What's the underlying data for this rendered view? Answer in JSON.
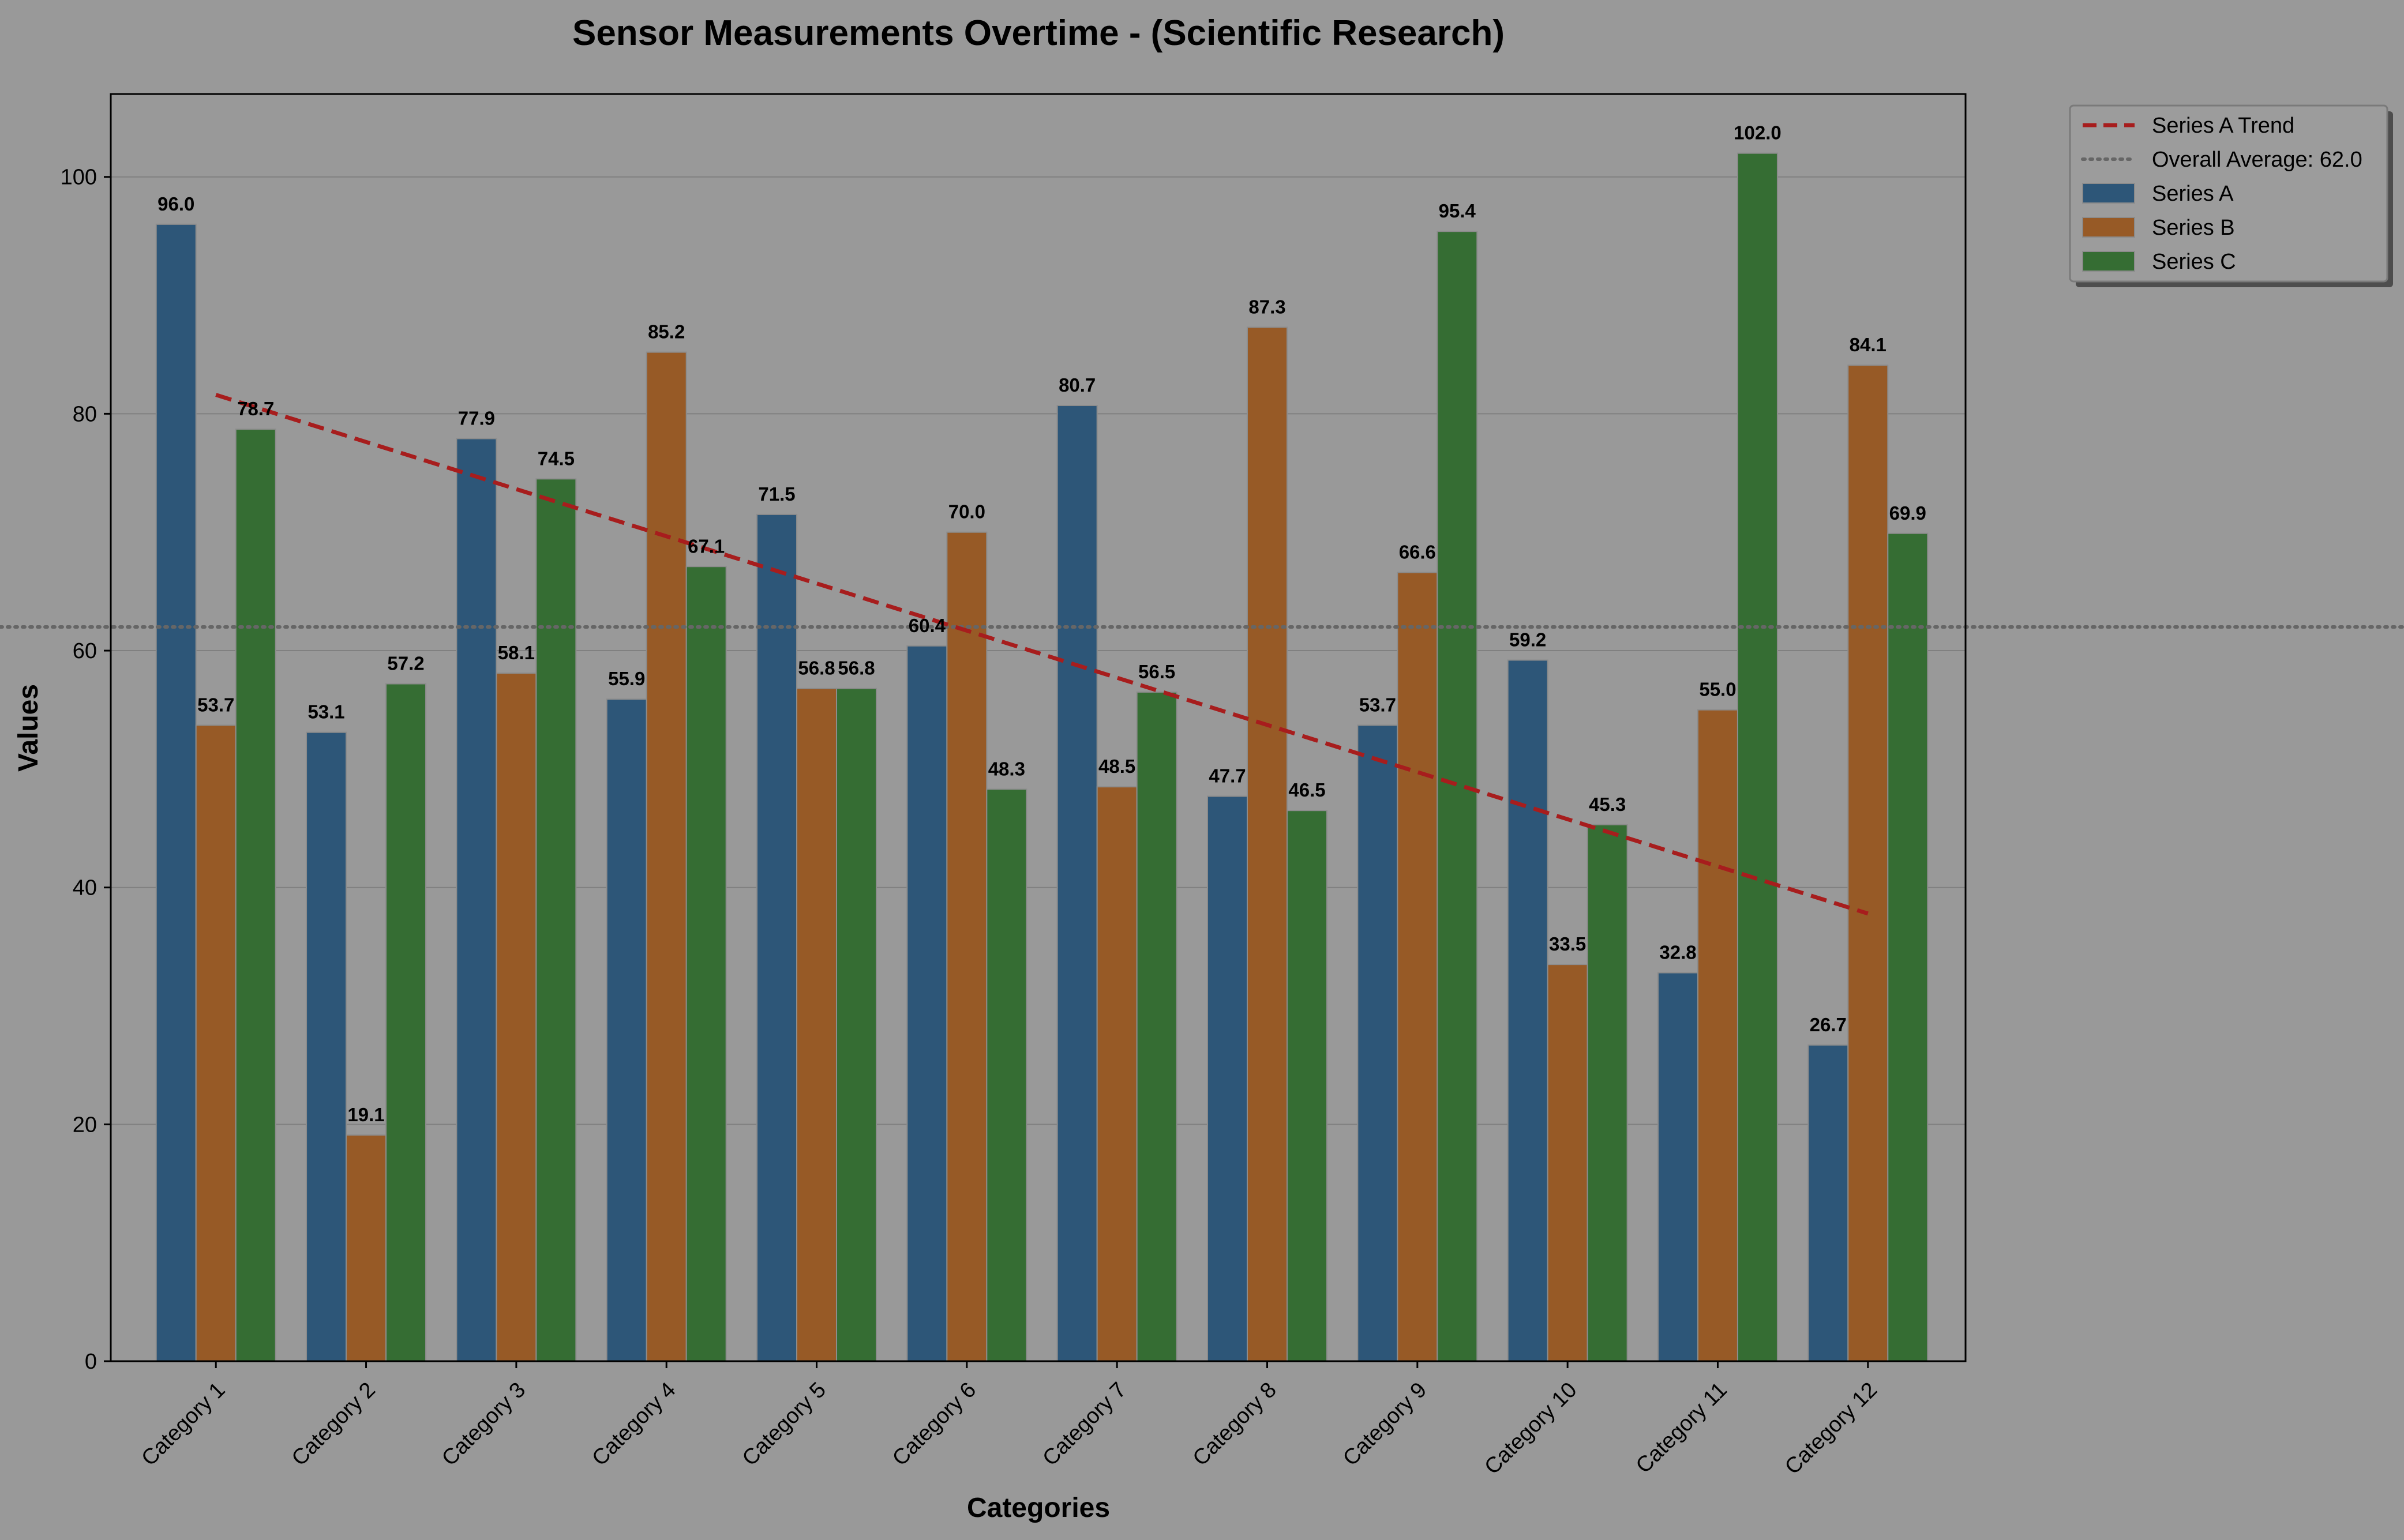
{
  "chart_data": {
    "type": "bar",
    "title": "Sensor Measurements Overtime - (Scientific Research)",
    "xlabel": "Categories",
    "ylabel": "Values",
    "ylim": [
      0,
      107
    ],
    "yticks": [
      0,
      20,
      40,
      60,
      80,
      100
    ],
    "grid": "horizontal",
    "legend_position": "outside-top-right",
    "categories": [
      "Category 1",
      "Category 2",
      "Category 3",
      "Category 4",
      "Category 5",
      "Category 6",
      "Category 7",
      "Category 8",
      "Category 9",
      "Category 10",
      "Category 11",
      "Category 12"
    ],
    "series": [
      {
        "name": "Series A",
        "color": "#2d5678",
        "values": [
          96.0,
          53.1,
          77.9,
          55.9,
          71.5,
          60.4,
          80.7,
          47.7,
          53.7,
          59.2,
          32.8,
          26.7
        ]
      },
      {
        "name": "Series B",
        "color": "#975a26",
        "values": [
          53.7,
          19.1,
          58.1,
          85.2,
          56.8,
          70.0,
          48.5,
          87.3,
          66.6,
          33.5,
          55.0,
          84.1
        ]
      },
      {
        "name": "Series C",
        "color": "#356d33",
        "values": [
          78.7,
          57.2,
          74.5,
          67.1,
          56.8,
          48.3,
          56.5,
          46.5,
          95.4,
          45.3,
          102.0,
          69.9
        ]
      }
    ],
    "trend": {
      "name": "Series A Trend",
      "color": "#a71d1d",
      "start": 81.6,
      "end": 37.8
    },
    "average": {
      "name": "Overall Average: 62.0",
      "value": 62.0,
      "color": "#666666"
    }
  }
}
